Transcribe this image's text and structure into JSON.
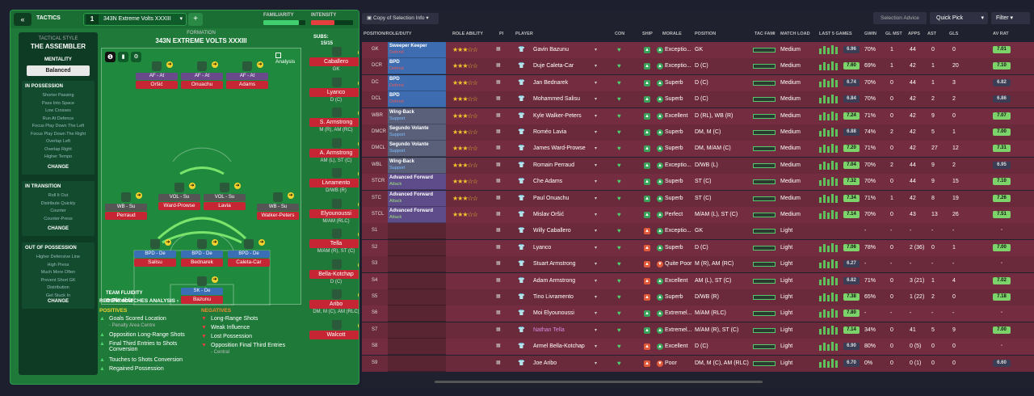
{
  "header": {
    "tactics_label": "TACTICS",
    "tab_number": "1",
    "tab_name": "343N Extreme Volts XXXIII",
    "familiarity_label": "FAMILIARITY",
    "intensity_label": "INTENSITY",
    "familiarity_fraction": 0.85,
    "intensity_fraction": 0.55
  },
  "sidebar": {
    "style_title": "TACTICAL STYLE",
    "style_value": "THE ASSEMBLER",
    "mentality_title": "MENTALITY",
    "mentality_value": "Balanced",
    "in_possession": {
      "title": "IN POSSESSION",
      "items": [
        "Shorter Passing",
        "Pass Into Space",
        "Low Crosses",
        "Run At Defence",
        "Focus Play Down The Left",
        "Focus Play Down The Right",
        "Overlap Left",
        "Overlap Right",
        "Higher Tempo"
      ],
      "change": "CHANGE"
    },
    "in_transition": {
      "title": "IN TRANSITION",
      "items": [
        "Roll It Out",
        "Distribute Quickly",
        "Counter",
        "Counter-Press"
      ],
      "change": "CHANGE"
    },
    "out_of_possession": {
      "title": "OUT OF POSSESSION",
      "items": [
        "Higher Defensive Line",
        "High Press",
        "Much More Often",
        "Prevent Short GK",
        "Distribution",
        "Get Stuck In"
      ],
      "change": "CHANGE"
    }
  },
  "pitch": {
    "formation_label": "FORMATION",
    "formation_name": "343N EXTREME VOLTS XXXIII",
    "subs_label": "SUBS:",
    "subs_value": "15/15",
    "analysis": "Analysis",
    "team_fluidity": "TEAM FLUIDITY",
    "fluidity_value": "Flexible",
    "players": [
      {
        "role": "AF - At",
        "name": "Oršić"
      },
      {
        "role": "AF - At",
        "name": "Onuachu"
      },
      {
        "role": "AF - At",
        "name": "Adams"
      },
      {
        "role": "WB - Su",
        "name": "Perraud"
      },
      {
        "role": "VOL - Su",
        "name": "Ward-Prowse"
      },
      {
        "role": "VOL - Su",
        "name": "Lavia"
      },
      {
        "role": "WB - Su",
        "name": "Walker-Peters"
      },
      {
        "role": "BPD - De",
        "name": "Salisu"
      },
      {
        "role": "BPD - De",
        "name": "Bednarek"
      },
      {
        "role": "BPD - De",
        "name": "Caleta-Car"
      },
      {
        "role": "SK - De",
        "name": "Bazunu"
      }
    ]
  },
  "subs": [
    {
      "name": "Caballero",
      "pos": "GK"
    },
    {
      "name": "Lyanco",
      "pos": "D (C)"
    },
    {
      "name": "S. Armstrong",
      "pos": "M (R), AM (RC)"
    },
    {
      "name": "A. Armstrong",
      "pos": "AM (L), ST (C)"
    },
    {
      "name": "Livramento",
      "pos": "D/WB (R)"
    },
    {
      "name": "Elyounoussi",
      "pos": "M/AM (RLC)"
    },
    {
      "name": "Tella",
      "pos": "M/AM (R), ST (C)"
    },
    {
      "name": "Bella-Kotchap",
      "pos": "D (C)"
    },
    {
      "name": "Aribo",
      "pos": "DM, M (C), AM (RLC)"
    },
    {
      "name": "Walcott",
      "pos": ""
    }
  ],
  "analysis": {
    "title": "RECENT MATCHES ANALYSIS",
    "positives_label": "POSITIVES",
    "negatives_label": "NEGATIVES",
    "positives": [
      {
        "t": "Goals Scored Location",
        "s": "- Penalty Area Centre"
      },
      {
        "t": "Opposition Long-Range Shots",
        "s": ""
      },
      {
        "t": "Final Third Entries to Shots Conversion",
        "s": ""
      },
      {
        "t": "Touches to Shots Conversion",
        "s": ""
      },
      {
        "t": "Regained Possession",
        "s": ""
      }
    ],
    "negatives": [
      {
        "t": "Long-Range Shots",
        "s": ""
      },
      {
        "t": "Weak Influence",
        "s": ""
      },
      {
        "t": "Lost Possession",
        "s": ""
      },
      {
        "t": "Opposition Final Third Entries",
        "s": "- Central"
      }
    ]
  },
  "right_toolbar": {
    "copy": "Copy of Selection Info",
    "advice": "Selection Advice",
    "quick": "Quick Pick",
    "filter": "Filter"
  },
  "columns": [
    "POSITION/ROLE/DUTY",
    "ROLE ABILITY",
    "PI",
    "PLAYER",
    "CON",
    "SHIP",
    "MORALE",
    "POSITION",
    "TAC FAMI",
    "MATCH LOAD",
    "LAST 5 GAMES",
    "GWIN",
    "GL MST",
    "APPS",
    "AST",
    "GLS",
    "AV RAT"
  ],
  "rows": [
    {
      "pos": "GK",
      "role": "Sweeper Keeper",
      "duty": "Defend",
      "name": "Gavin Bazunu",
      "morale": "Exceptio...",
      "position": "GK",
      "load": "Medium",
      "last": "6.96",
      "gwin": "70%",
      "glmst": "1",
      "apps": "44",
      "ast": "0",
      "gls": "0",
      "avrat": "7.01"
    },
    {
      "pos": "DCR",
      "role": "BPD",
      "duty": "Defend",
      "name": "Duje Caleta-Car",
      "morale": "Exceptio...",
      "position": "D (C)",
      "load": "Medium",
      "last": "7.60",
      "gwin": "69%",
      "glmst": "1",
      "apps": "42",
      "ast": "1",
      "gls": "20",
      "avrat": "7.10"
    },
    {
      "pos": "DC",
      "role": "BPD",
      "duty": "Defend",
      "name": "Jan Bednarek",
      "morale": "Superb",
      "position": "D (C)",
      "load": "Medium",
      "last": "6.74",
      "gwin": "70%",
      "glmst": "0",
      "apps": "44",
      "ast": "1",
      "gls": "3",
      "avrat": "6.82"
    },
    {
      "pos": "DCL",
      "role": "BPD",
      "duty": "Defend",
      "name": "Mohammed Salisu",
      "morale": "Superb",
      "position": "D (C)",
      "load": "Medium",
      "last": "6.84",
      "gwin": "70%",
      "glmst": "0",
      "apps": "42",
      "ast": "2",
      "gls": "2",
      "avrat": "6.86"
    },
    {
      "pos": "WBR",
      "role": "Wing-Back",
      "duty": "Support",
      "name": "Kyle Walker-Peters",
      "morale": "Excellent",
      "position": "D (RL), WB (R)",
      "load": "Medium",
      "last": "7.24",
      "gwin": "71%",
      "glmst": "0",
      "apps": "42",
      "ast": "9",
      "gls": "0",
      "avrat": "7.07"
    },
    {
      "pos": "DMCR",
      "role": "Segundo Volante",
      "duty": "Support",
      "name": "Roméo Lavia",
      "morale": "Superb",
      "position": "DM, M (C)",
      "load": "Medium",
      "last": "6.88",
      "gwin": "74%",
      "glmst": "2",
      "apps": "42",
      "ast": "5",
      "gls": "1",
      "avrat": "7.00"
    },
    {
      "pos": "DMCL",
      "role": "Segundo Volante",
      "duty": "Support",
      "name": "James Ward-Prowse",
      "morale": "Superb",
      "position": "DM, M/AM (C)",
      "load": "Medium",
      "last": "7.20",
      "gwin": "71%",
      "glmst": "0",
      "apps": "42",
      "ast": "27",
      "gls": "12",
      "avrat": "7.31"
    },
    {
      "pos": "WBL",
      "role": "Wing-Back",
      "duty": "Support",
      "name": "Romain Perraud",
      "morale": "Exceptio...",
      "position": "D/WB (L)",
      "load": "Medium",
      "last": "7.04",
      "gwin": "70%",
      "glmst": "2",
      "apps": "44",
      "ast": "9",
      "gls": "2",
      "avrat": "6.95"
    },
    {
      "pos": "STCR",
      "role": "Advanced Forward",
      "duty": "Attack",
      "name": "Che Adams",
      "morale": "Superb",
      "position": "ST (C)",
      "load": "Medium",
      "last": "7.32",
      "gwin": "70%",
      "glmst": "0",
      "apps": "44",
      "ast": "9",
      "gls": "15",
      "avrat": "7.10"
    },
    {
      "pos": "STC",
      "role": "Advanced Forward",
      "duty": "Attack",
      "name": "Paul Onuachu",
      "morale": "Superb",
      "position": "ST (C)",
      "load": "Medium",
      "last": "7.34",
      "gwin": "71%",
      "glmst": "1",
      "apps": "42",
      "ast": "8",
      "gls": "19",
      "avrat": "7.26"
    },
    {
      "pos": "STCL",
      "role": "Advanced Forward",
      "duty": "Attack",
      "name": "Mislav Oršić",
      "morale": "Perfect",
      "position": "M/AM (L), ST (C)",
      "load": "Medium",
      "last": "7.14",
      "gwin": "70%",
      "glmst": "0",
      "apps": "43",
      "ast": "13",
      "gls": "26",
      "avrat": "7.51"
    },
    {
      "pos": "S1",
      "role": "",
      "duty": "",
      "name": "Willy Caballero",
      "morale": "Exceptio...",
      "position": "GK",
      "load": "Light",
      "last": "",
      "gwin": "-",
      "glmst": "-",
      "apps": "-",
      "ast": "-",
      "gls": "-",
      "avrat": "-"
    },
    {
      "pos": "S2",
      "role": "",
      "duty": "",
      "name": "Lyanco",
      "morale": "Superb",
      "position": "D (C)",
      "load": "Light",
      "last": "7.06",
      "gwin": "78%",
      "glmst": "0",
      "apps": "2 (36)",
      "ast": "0",
      "gls": "1",
      "avrat": "7.00"
    },
    {
      "pos": "S3",
      "role": "",
      "duty": "",
      "name": "Stuart Armstrong",
      "morale": "Quite Poor",
      "position": "M (R), AM (RC)",
      "load": "Light",
      "last": "6.27",
      "gwin": "-",
      "glmst": "-",
      "apps": "-",
      "ast": "-",
      "gls": "-",
      "avrat": "-"
    },
    {
      "pos": "S4",
      "role": "",
      "duty": "",
      "name": "Adam Armstrong",
      "morale": "Excellent",
      "position": "AM (L), ST (C)",
      "load": "Light",
      "last": "6.82",
      "gwin": "71%",
      "glmst": "0",
      "apps": "3 (21)",
      "ast": "1",
      "gls": "4",
      "avrat": "7.02"
    },
    {
      "pos": "S5",
      "role": "",
      "duty": "",
      "name": "Tino Livramento",
      "morale": "Superb",
      "position": "D/WB (R)",
      "load": "Light",
      "last": "7.38",
      "gwin": "65%",
      "glmst": "0",
      "apps": "1 (22)",
      "ast": "2",
      "gls": "0",
      "avrat": "7.18"
    },
    {
      "pos": "S6",
      "role": "",
      "duty": "",
      "name": "Moi Elyounoussi",
      "morale": "Extremel...",
      "position": "M/AM (RLC)",
      "load": "Light",
      "last": "7.80",
      "gwin": "-",
      "glmst": "-",
      "apps": "-",
      "ast": "-",
      "gls": "-",
      "avrat": "-"
    },
    {
      "pos": "S7",
      "role": "",
      "duty": "",
      "name": "Nathan Tella",
      "morale": "Extremel...",
      "position": "M/AM (R), ST (C)",
      "load": "Light",
      "last": "7.14",
      "gwin": "34%",
      "glmst": "0",
      "apps": "41",
      "ast": "5",
      "gls": "9",
      "avrat": "7.00"
    },
    {
      "pos": "S8",
      "role": "",
      "duty": "",
      "name": "Armel Bella-Kotchap",
      "morale": "Excellent",
      "position": "D (C)",
      "load": "Light",
      "last": "6.90",
      "gwin": "80%",
      "glmst": "0",
      "apps": "0 (5)",
      "ast": "0",
      "gls": "0",
      "avrat": "-"
    },
    {
      "pos": "S9",
      "role": "",
      "duty": "",
      "name": "Joe Aribo",
      "morale": "Poor",
      "position": "DM, M (C), AM (RLC)",
      "load": "Light",
      "last": "6.70",
      "gwin": "0%",
      "glmst": "0",
      "apps": "0 (1)",
      "ast": "0",
      "gls": "0",
      "avrat": "6.60"
    }
  ]
}
